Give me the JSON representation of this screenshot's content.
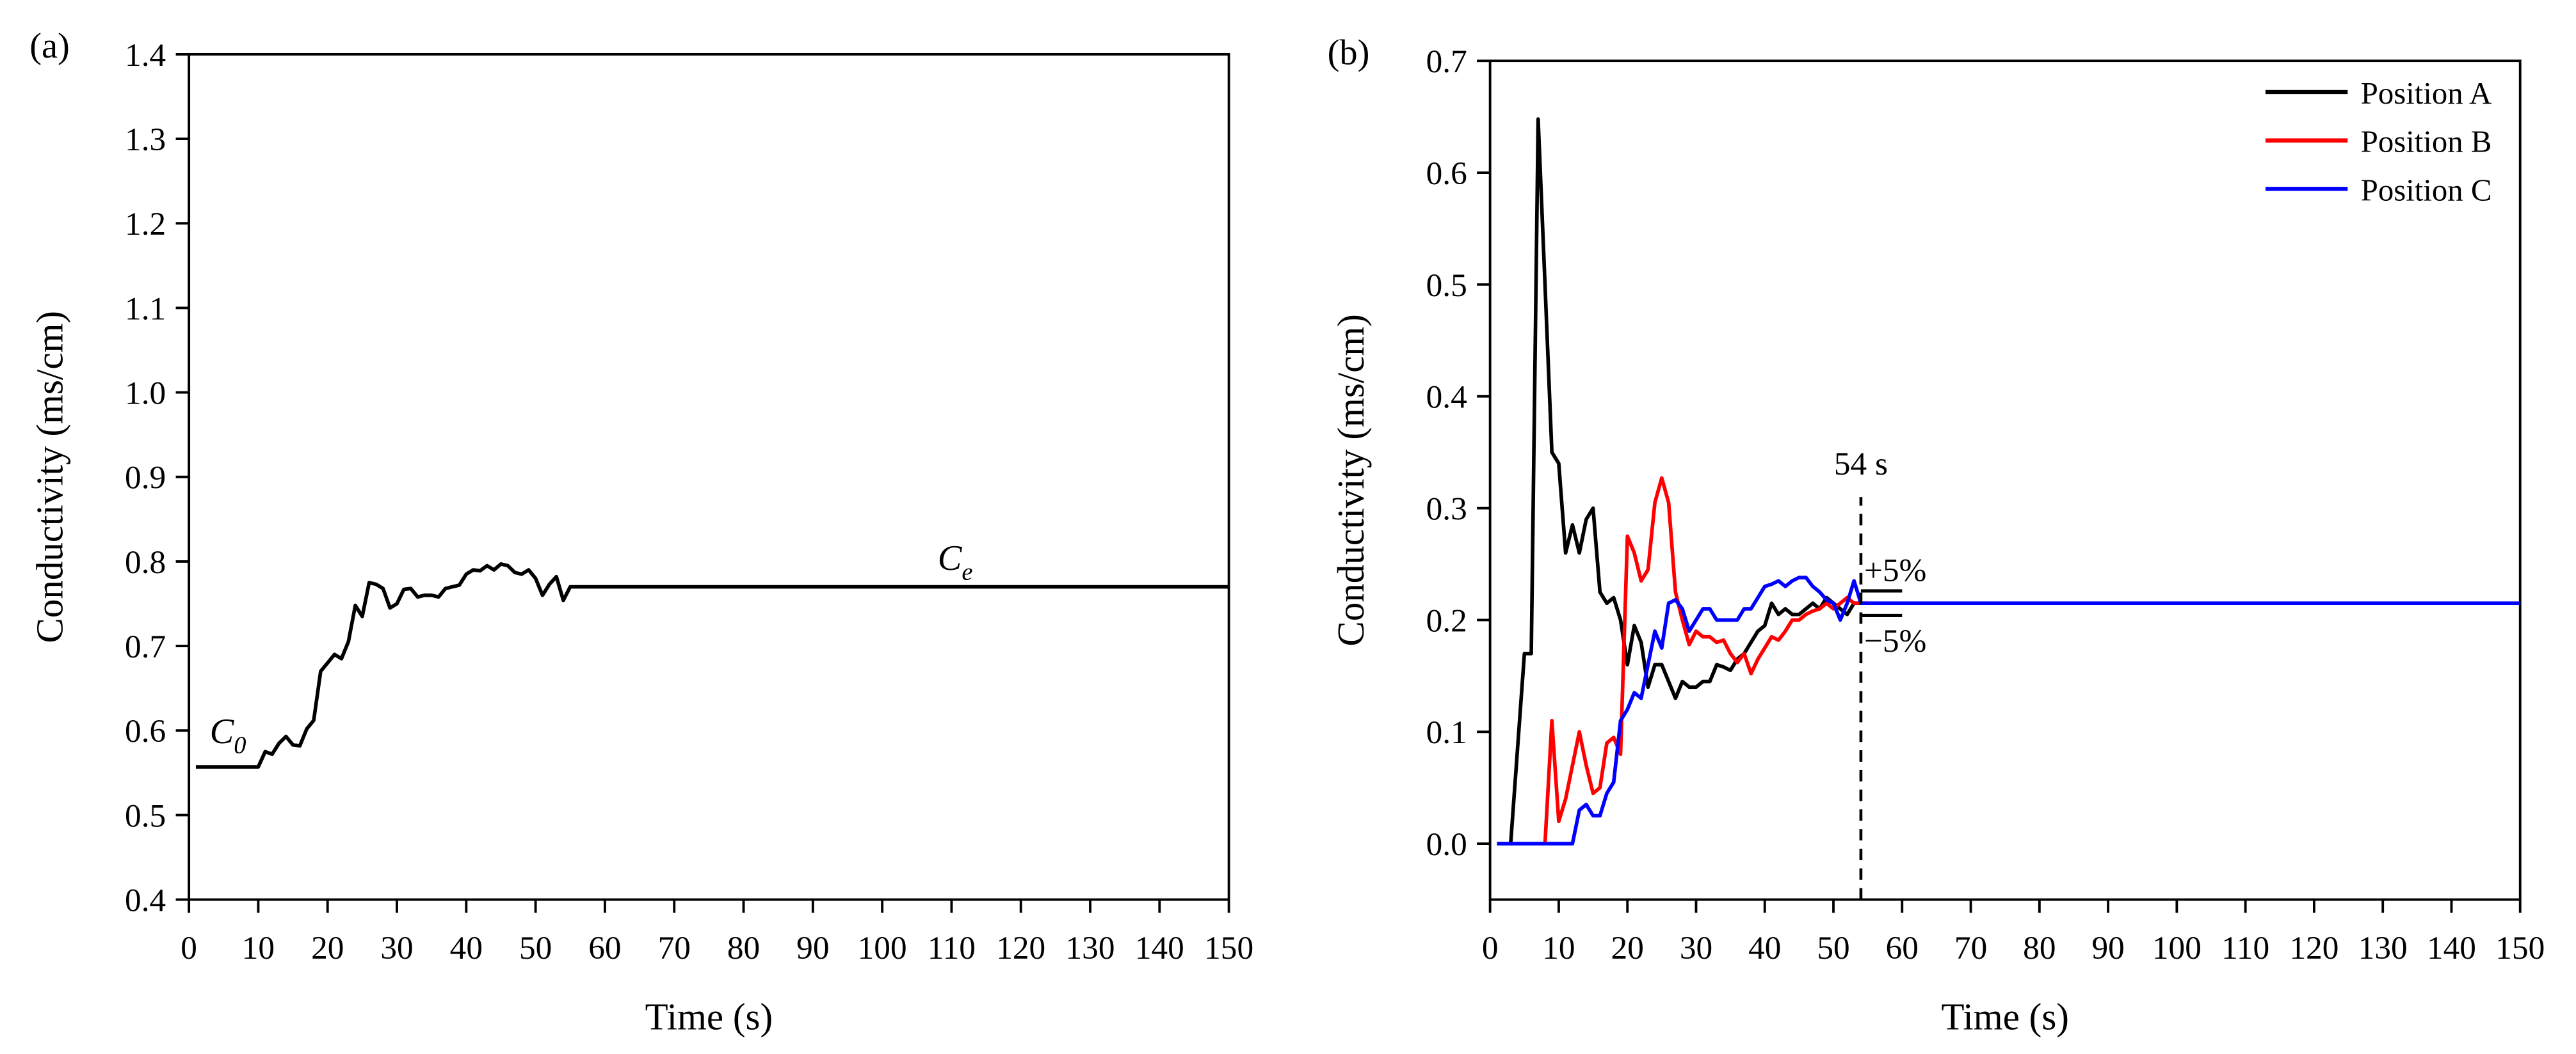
{
  "chart_data": [
    {
      "type": "line",
      "panel_label": "(a)",
      "xlabel": "Time (s)",
      "ylabel": "Conductivity (ms/cm)",
      "color": "#000000",
      "xlim": [
        0,
        150
      ],
      "xticks": [
        0,
        10,
        20,
        30,
        40,
        50,
        60,
        70,
        80,
        90,
        100,
        110,
        120,
        130,
        140,
        150
      ],
      "ylim": [
        0.4,
        1.4
      ],
      "yticks": [
        0.4,
        0.5,
        0.6,
        0.7,
        0.8,
        0.9,
        {
          "value": 1,
          "label": "1.0"
        },
        1.1,
        1.2,
        1.3,
        1.4
      ],
      "x": [
        1,
        10,
        11,
        12,
        13,
        14,
        15,
        16,
        17,
        18,
        19,
        20,
        21,
        22,
        23,
        24,
        25,
        26,
        27,
        28,
        29,
        30,
        31,
        32,
        33,
        34,
        35,
        36,
        37,
        38,
        39,
        40,
        41,
        42,
        43,
        44,
        45,
        46,
        47,
        48,
        49,
        50,
        51,
        52,
        53,
        54,
        55,
        150
      ],
      "values": [
        0.557,
        0.557,
        0.575,
        0.572,
        0.585,
        0.593,
        0.583,
        0.582,
        0.602,
        0.612,
        0.67,
        0.68,
        0.69,
        0.685,
        0.705,
        0.748,
        0.735,
        0.775,
        0.773,
        0.768,
        0.745,
        0.75,
        0.767,
        0.768,
        0.758,
        0.76,
        0.76,
        0.758,
        0.768,
        0.77,
        0.772,
        0.785,
        0.79,
        0.789,
        0.795,
        0.79,
        0.797,
        0.795,
        0.787,
        0.785,
        0.79,
        0.78,
        0.76,
        0.773,
        0.782,
        0.754,
        0.77,
        0.77
      ],
      "annotations": [
        {
          "text": "C",
          "subscript": "0",
          "x": 3,
          "y": 0.585
        },
        {
          "text": "C",
          "subscript": "e",
          "x": 108,
          "y": 0.79
        }
      ]
    },
    {
      "type": "line",
      "panel_label": "(b)",
      "xlabel": "Time (s)",
      "ylabel": "Conductivity (ms/cm)",
      "legend": "upper right",
      "xlim": [
        0,
        150
      ],
      "xticks": [
        0,
        10,
        20,
        30,
        40,
        50,
        60,
        70,
        80,
        90,
        100,
        110,
        120,
        130,
        140,
        150
      ],
      "ylim": [
        -0.05,
        0.7
      ],
      "yticks": [
        {
          "value": 0,
          "label": "0.0"
        },
        0.1,
        0.2,
        0.3,
        0.4,
        0.5,
        0.6,
        0.7
      ],
      "series": [
        {
          "name": "Position A",
          "color": "#000000",
          "x": [
            3,
            5,
            6,
            7,
            8,
            9,
            10,
            11,
            12,
            13,
            14,
            15,
            16,
            17,
            18,
            19,
            20,
            21,
            22,
            23,
            24,
            25,
            26,
            27,
            28,
            29,
            30,
            31,
            32,
            33,
            34,
            35,
            36,
            37,
            38,
            39,
            40,
            41,
            42,
            43,
            44,
            45,
            46,
            47,
            48,
            49,
            50,
            51,
            52,
            53,
            54
          ],
          "values": [
            0,
            0.17,
            0.17,
            0.648,
            0.5,
            0.35,
            0.34,
            0.26,
            0.285,
            0.26,
            0.29,
            0.3,
            0.225,
            0.215,
            0.22,
            0.2,
            0.16,
            0.195,
            0.18,
            0.14,
            0.16,
            0.16,
            0.145,
            0.13,
            0.145,
            0.14,
            0.14,
            0.145,
            0.145,
            0.16,
            0.158,
            0.155,
            0.165,
            0.17,
            0.18,
            0.19,
            0.195,
            0.215,
            0.205,
            0.21,
            0.205,
            0.205,
            0.21,
            0.215,
            0.21,
            0.22,
            0.215,
            0.21,
            0.205,
            0.215,
            0.215
          ]
        },
        {
          "name": "Position B",
          "color": "#ff0000",
          "x": [
            8,
            9,
            10,
            11,
            12,
            13,
            14,
            15,
            16,
            17,
            18,
            19,
            20,
            21,
            22,
            23,
            24,
            25,
            26,
            27,
            28,
            29,
            30,
            31,
            32,
            33,
            34,
            35,
            36,
            37,
            38,
            39,
            40,
            41,
            42,
            43,
            44,
            45,
            46,
            47,
            48,
            49,
            50,
            51,
            52,
            53,
            54,
            55
          ],
          "values": [
            0,
            0.11,
            0.02,
            0.04,
            0.07,
            0.1,
            0.07,
            0.045,
            0.05,
            0.09,
            0.095,
            0.08,
            0.275,
            0.26,
            0.235,
            0.245,
            0.305,
            0.327,
            0.305,
            0.225,
            0.2,
            0.178,
            0.19,
            0.185,
            0.185,
            0.18,
            0.182,
            0.17,
            0.162,
            0.17,
            0.152,
            0.165,
            0.175,
            0.185,
            0.182,
            0.19,
            0.2,
            0.2,
            0.205,
            0.208,
            0.21,
            0.215,
            0.21,
            0.215,
            0.22,
            0.215,
            0.215,
            0.215
          ]
        },
        {
          "name": "Position C",
          "color": "#0000ff",
          "x": [
            1,
            12,
            13,
            14,
            15,
            16,
            17,
            18,
            19,
            20,
            21,
            22,
            23,
            24,
            25,
            26,
            27,
            28,
            29,
            30,
            31,
            32,
            33,
            34,
            35,
            36,
            37,
            38,
            39,
            40,
            41,
            42,
            43,
            44,
            45,
            46,
            47,
            48,
            49,
            50,
            51,
            52,
            53,
            54,
            150
          ],
          "values": [
            0,
            0,
            0.03,
            0.035,
            0.025,
            0.025,
            0.045,
            0.055,
            0.11,
            0.12,
            0.135,
            0.13,
            0.16,
            0.19,
            0.175,
            0.215,
            0.218,
            0.21,
            0.19,
            0.2,
            0.21,
            0.21,
            0.2,
            0.2,
            0.2,
            0.2,
            0.21,
            0.21,
            0.22,
            0.23,
            0.232,
            0.235,
            0.23,
            0.235,
            0.238,
            0.238,
            0.23,
            0.225,
            0.218,
            0.215,
            0.2,
            0.215,
            0.235,
            0.215,
            0.215
          ]
        }
      ],
      "vline": 54,
      "band_x": [
        54,
        60
      ],
      "bands": [
        {
          "label": "+5%",
          "value": 0.226
        },
        {
          "label": "−5%",
          "value": 0.204
        }
      ],
      "annotations": [
        {
          "text": "54 s",
          "x": 54,
          "y": 0.33
        }
      ]
    }
  ]
}
